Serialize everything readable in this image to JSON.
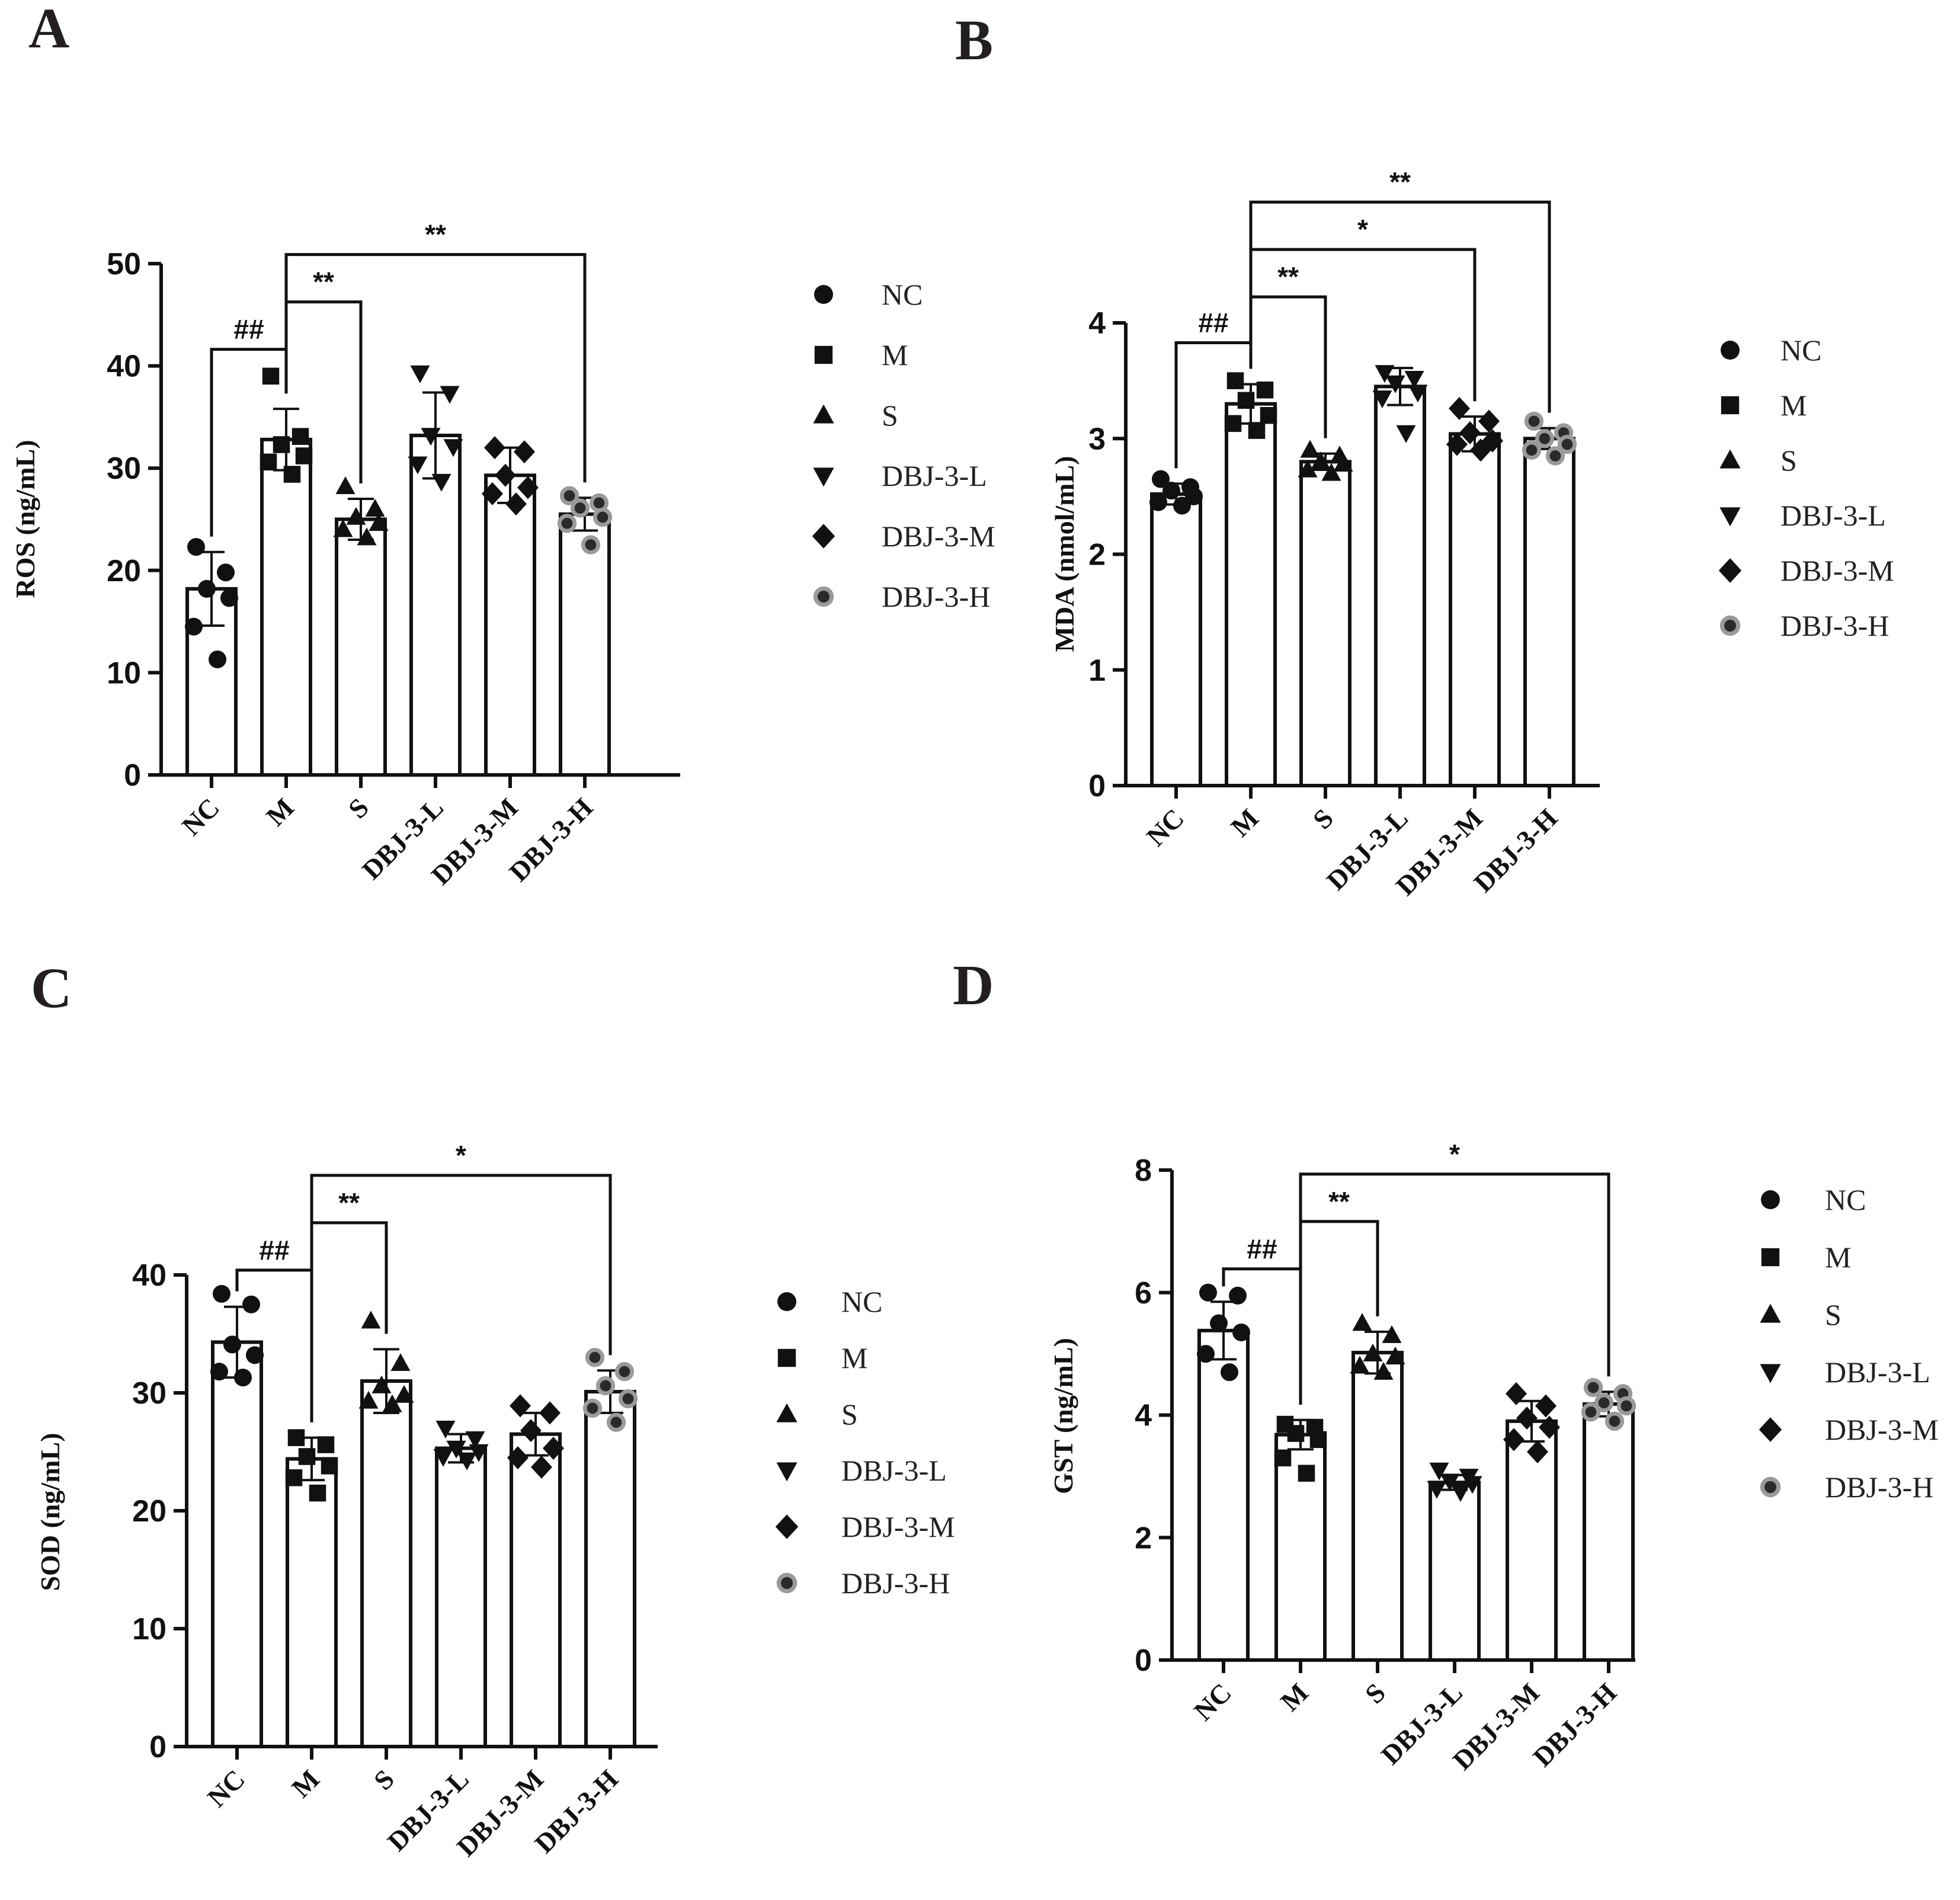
{
  "chart_data": [
    {
      "panel": "A",
      "type": "bar",
      "ylabel": "ROS (ng/mL)",
      "ylim": [
        0,
        50
      ],
      "yticks": [
        0,
        10,
        20,
        30,
        40,
        50
      ],
      "categories": [
        "NC",
        "M",
        "S",
        "DBJ-3-L",
        "DBJ-3-M",
        "DBJ-3-H"
      ],
      "values": [
        18.2,
        32.8,
        25.0,
        33.2,
        29.3,
        25.5
      ],
      "errors": [
        3.6,
        3.0,
        2.0,
        4.2,
        2.7,
        1.6
      ],
      "points": [
        [
          22.3,
          19.8,
          18.2,
          17.3,
          14.5,
          11.3
        ],
        [
          39.0,
          33.1,
          32.3,
          31.2,
          30.6,
          29.4
        ],
        [
          28.2,
          26.0,
          25.2,
          24.6,
          24.0,
          23.2
        ],
        [
          39.3,
          37.3,
          33.2,
          32.1,
          30.4,
          28.7
        ],
        [
          32.0,
          31.6,
          29.3,
          28.1,
          27.5,
          26.5
        ],
        [
          27.3,
          26.6,
          26.1,
          25.2,
          24.6,
          22.5
        ]
      ],
      "significance": [
        {
          "from": "NC",
          "to": "M",
          "label": "##"
        },
        {
          "from": "M",
          "to": "S",
          "label": "**"
        },
        {
          "from": "M",
          "to": "DBJ-3-H",
          "label": "**"
        }
      ]
    },
    {
      "panel": "B",
      "type": "bar",
      "ylabel": "MDA (nmol/mL)",
      "ylim": [
        0,
        4
      ],
      "yticks": [
        0,
        1,
        2,
        3,
        4
      ],
      "categories": [
        "NC",
        "M",
        "S",
        "DBJ-3-L",
        "DBJ-3-M",
        "DBJ-3-H"
      ],
      "values": [
        2.52,
        3.3,
        2.8,
        3.45,
        3.04,
        3.0
      ],
      "errors": [
        0.09,
        0.17,
        0.07,
        0.16,
        0.15,
        0.09
      ],
      "points": [
        [
          2.65,
          2.58,
          2.55,
          2.5,
          2.45,
          2.42
        ],
        [
          3.5,
          3.42,
          3.33,
          3.2,
          3.13,
          3.07
        ],
        [
          2.9,
          2.85,
          2.8,
          2.78,
          2.73,
          2.7
        ],
        [
          3.57,
          3.52,
          3.48,
          3.4,
          3.35,
          3.05
        ],
        [
          3.26,
          3.15,
          3.05,
          2.98,
          2.95,
          2.9
        ],
        [
          3.15,
          3.05,
          3.0,
          2.95,
          2.9,
          2.85
        ]
      ],
      "significance": [
        {
          "from": "NC",
          "to": "M",
          "label": "##"
        },
        {
          "from": "M",
          "to": "S",
          "label": "**"
        },
        {
          "from": "M",
          "to": "DBJ-3-M",
          "label": "*"
        },
        {
          "from": "M",
          "to": "DBJ-3-H",
          "label": "**"
        }
      ]
    },
    {
      "panel": "C",
      "type": "bar",
      "ylabel": "SOD (ng/mL)",
      "ylim": [
        0,
        40
      ],
      "yticks": [
        0,
        10,
        20,
        30,
        40
      ],
      "categories": [
        "NC",
        "M",
        "S",
        "DBJ-3-L",
        "DBJ-3-M",
        "DBJ-3-H"
      ],
      "values": [
        34.3,
        24.4,
        31.0,
        25.3,
        26.5,
        30.1
      ],
      "errors": [
        3.0,
        1.8,
        2.7,
        1.2,
        1.8,
        1.8
      ],
      "points": [
        [
          38.4,
          37.5,
          34.1,
          33.2,
          31.8,
          31.3
        ],
        [
          26.2,
          25.6,
          24.6,
          23.8,
          22.8,
          21.5
        ],
        [
          36.1,
          32.5,
          30.6,
          29.8,
          29.3,
          29.0
        ],
        [
          27.0,
          26.1,
          25.3,
          25.0,
          24.6,
          24.3
        ],
        [
          28.9,
          28.3,
          26.8,
          25.3,
          24.5,
          23.7
        ],
        [
          33.0,
          31.8,
          30.6,
          29.5,
          28.7,
          27.5
        ]
      ],
      "significance": [
        {
          "from": "NC",
          "to": "M",
          "label": "##"
        },
        {
          "from": "M",
          "to": "S",
          "label": "**"
        },
        {
          "from": "M",
          "to": "DBJ-3-H",
          "label": "*"
        }
      ]
    },
    {
      "panel": "D",
      "type": "bar",
      "ylabel": "GST (ng/mL)",
      "ylim": [
        0,
        8
      ],
      "yticks": [
        0,
        2,
        4,
        6,
        8
      ],
      "categories": [
        "NC",
        "M",
        "S",
        "DBJ-3-L",
        "DBJ-3-M",
        "DBJ-3-H"
      ],
      "values": [
        5.38,
        3.68,
        5.02,
        2.9,
        3.9,
        4.18
      ],
      "errors": [
        0.47,
        0.24,
        0.34,
        0.12,
        0.33,
        0.2
      ],
      "points": [
        [
          6.0,
          5.95,
          5.5,
          5.35,
          5.0,
          4.7
        ],
        [
          3.85,
          3.8,
          3.7,
          3.6,
          3.3,
          3.05
        ],
        [
          5.5,
          5.3,
          5.0,
          4.95,
          4.8,
          4.7
        ],
        [
          3.1,
          3.0,
          2.92,
          2.88,
          2.8,
          2.75
        ],
        [
          4.35,
          4.15,
          3.95,
          3.8,
          3.6,
          3.4
        ],
        [
          4.45,
          4.35,
          4.2,
          4.15,
          4.05,
          3.9
        ]
      ],
      "significance": [
        {
          "from": "NC",
          "to": "M",
          "label": "##"
        },
        {
          "from": "M",
          "to": "S",
          "label": "**"
        },
        {
          "from": "M",
          "to": "DBJ-3-H",
          "label": "*"
        }
      ]
    }
  ],
  "legend": {
    "entries": [
      {
        "label": "NC",
        "marker": "circle"
      },
      {
        "label": "M",
        "marker": "square"
      },
      {
        "label": "S",
        "marker": "triangle-up"
      },
      {
        "label": "DBJ-3-L",
        "marker": "triangle-down"
      },
      {
        "label": "DBJ-3-M",
        "marker": "diamond"
      },
      {
        "label": "DBJ-3-H",
        "marker": "circle-gray-ring"
      }
    ]
  },
  "colors": {
    "ink": "#111111",
    "bar_fill": "#ffffff",
    "ring": "#9a9a9a"
  }
}
